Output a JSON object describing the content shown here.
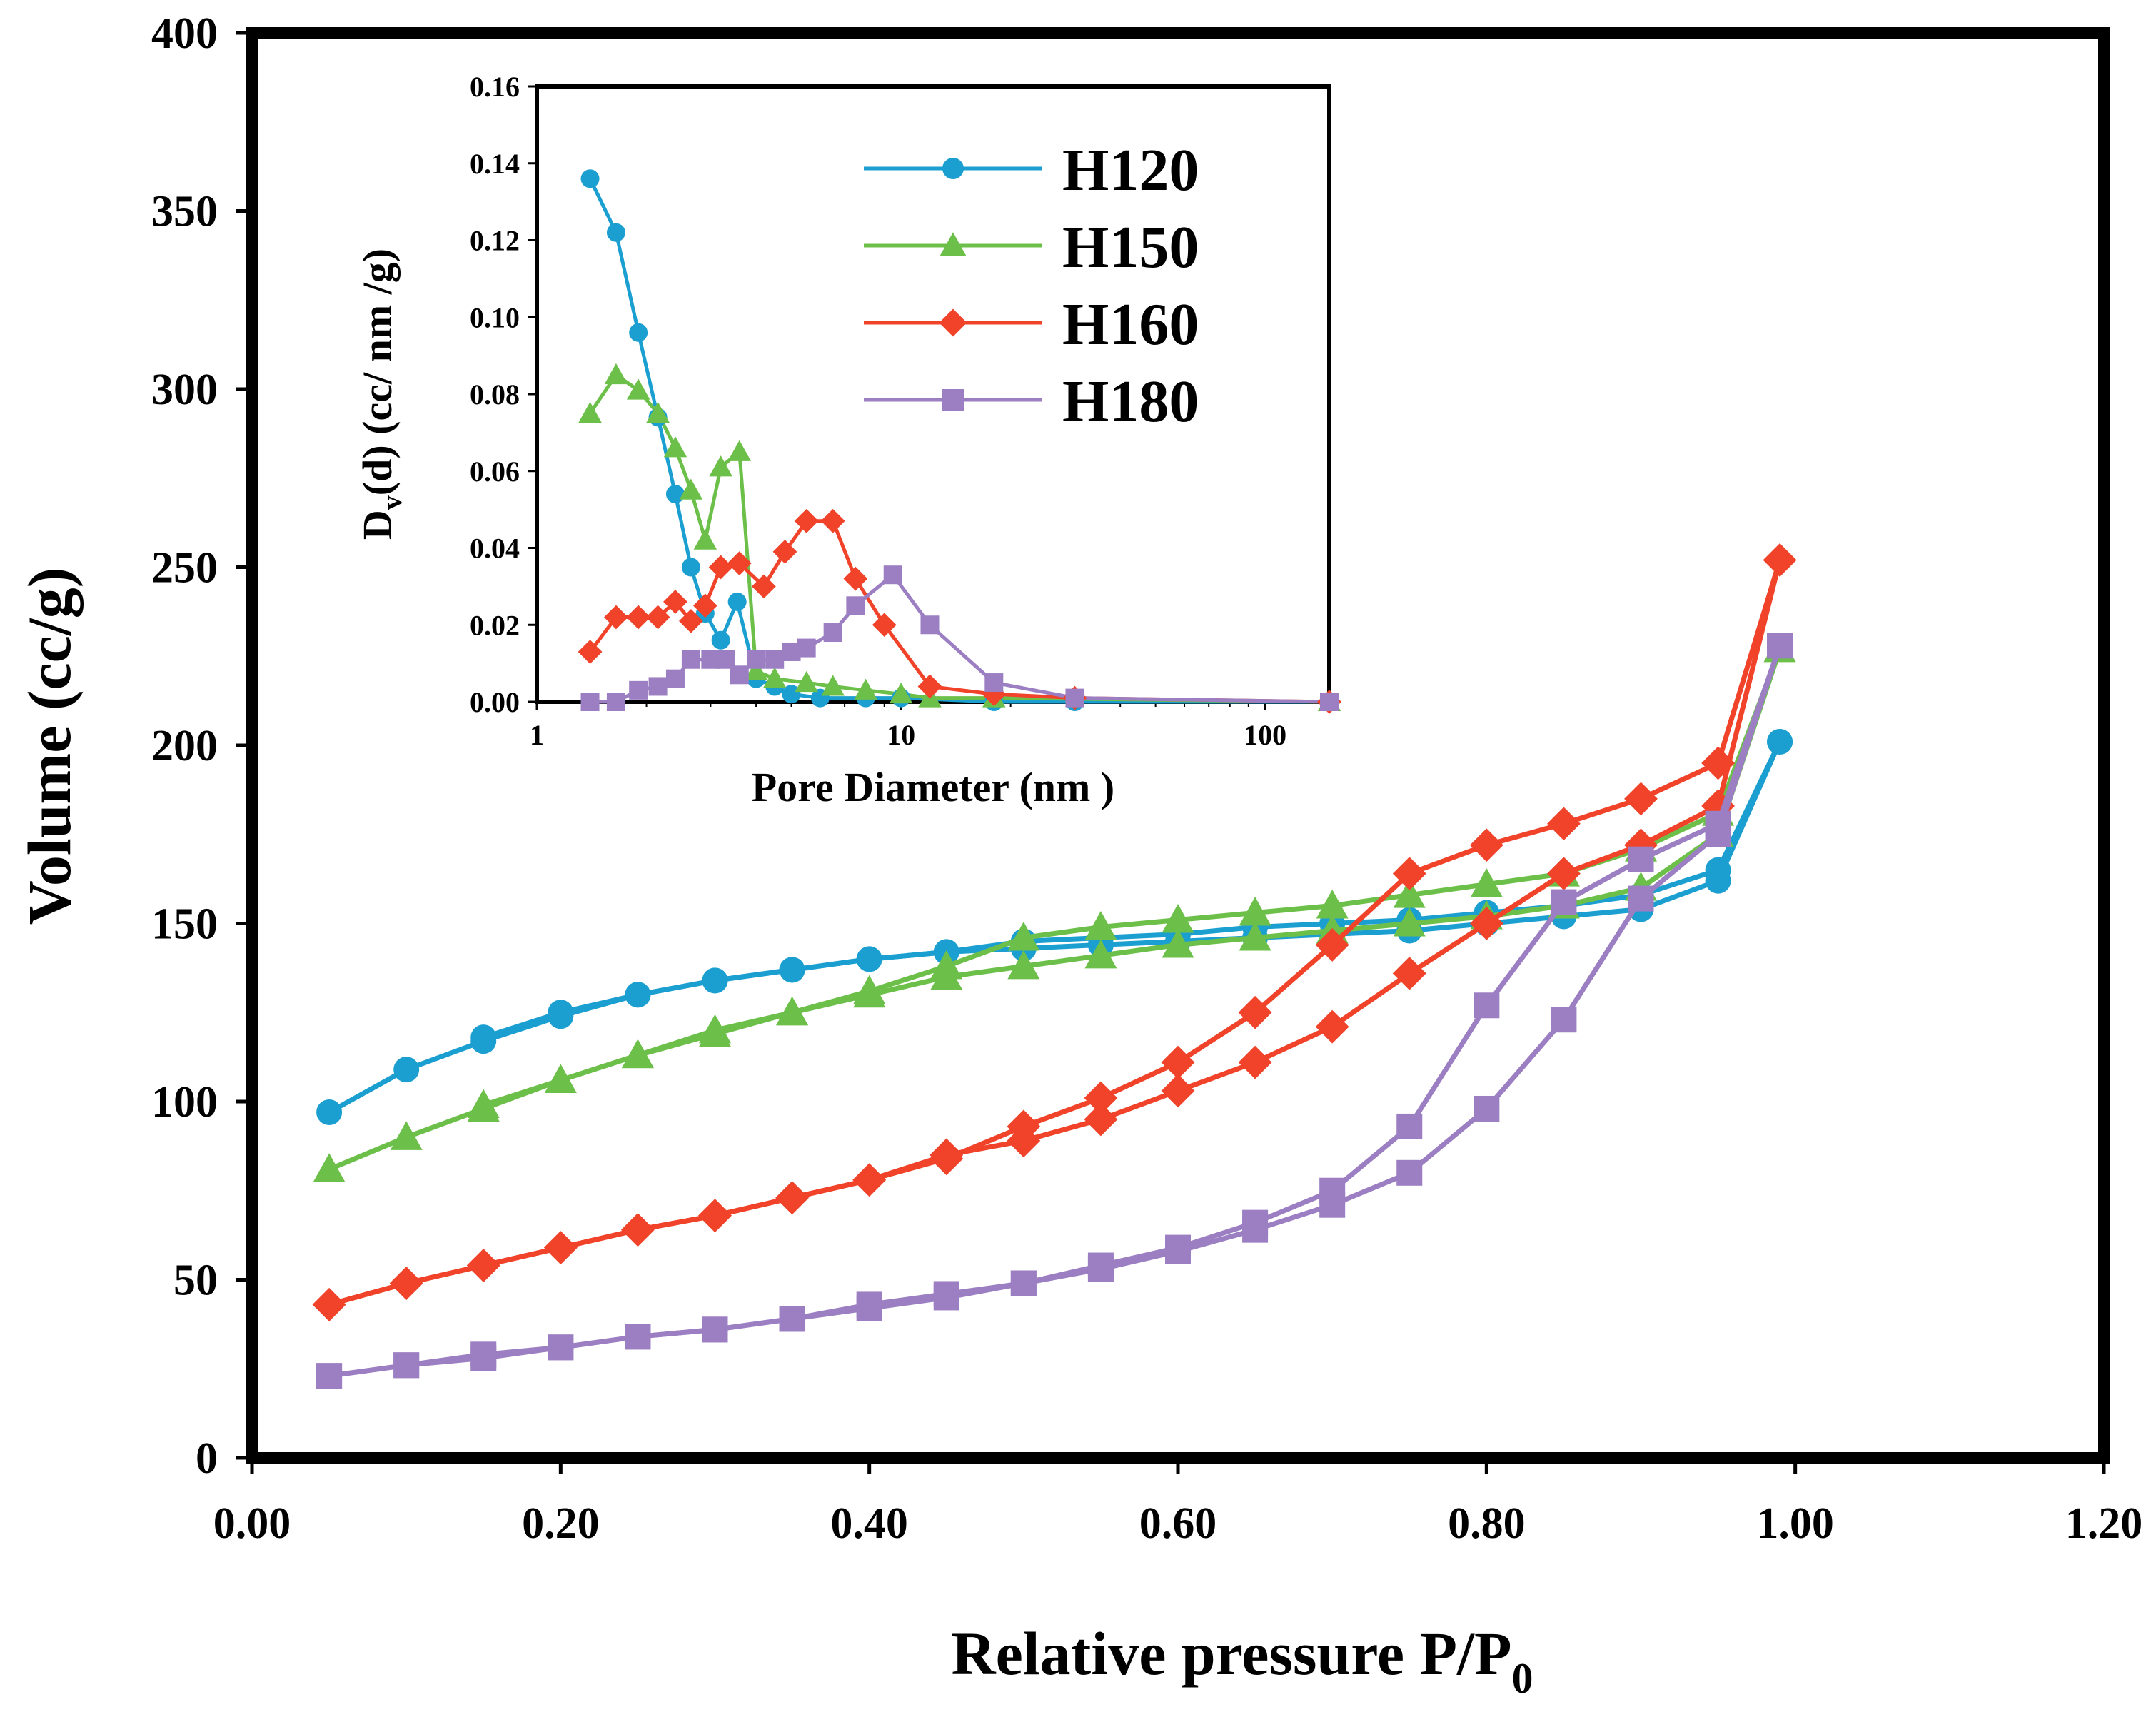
{
  "chart_data": [
    {
      "id": "isotherm",
      "type": "line",
      "xlabel_prefix": "Relative pressure P/P",
      "xlabel_sub": "0",
      "ylabel": "Volume (cc/g)",
      "xlim": [
        0,
        1.2
      ],
      "ylim": [
        0,
        400
      ],
      "xticks": [
        "0.00",
        "0.20",
        "0.40",
        "0.60",
        "0.80",
        "1.00",
        "1.20"
      ],
      "xtick_values": [
        0,
        0.2,
        0.4,
        0.6,
        0.8,
        1.0,
        1.2
      ],
      "yticks": [
        "0",
        "50",
        "100",
        "150",
        "200",
        "250",
        "300",
        "350",
        "400"
      ],
      "ytick_values": [
        0,
        50,
        100,
        150,
        200,
        250,
        300,
        350,
        400
      ],
      "grid": false,
      "series": [
        {
          "name": "H120",
          "color": "#1b9fd0",
          "marker": "circle",
          "adsorption": {
            "x": [
              0.05,
              0.1,
              0.15,
              0.2,
              0.25,
              0.3,
              0.35,
              0.4,
              0.45,
              0.5,
              0.55,
              0.6,
              0.65,
              0.7,
              0.75,
              0.8,
              0.85,
              0.9,
              0.95,
              0.99
            ],
            "y": [
              97,
              109,
              117,
              124,
              130,
              134,
              137,
              140,
              142,
              145,
              146,
              147,
              149,
              150,
              151,
              153,
              155,
              158,
              165,
              201
            ]
          },
          "desorption": {
            "x": [
              0.99,
              0.95,
              0.9,
              0.85,
              0.8,
              0.75,
              0.7,
              0.65,
              0.6,
              0.55,
              0.5,
              0.45,
              0.4,
              0.35,
              0.3,
              0.25,
              0.2,
              0.15
            ],
            "y": [
              201,
              162,
              154,
              152,
              150,
              148,
              147,
              146,
              145,
              144,
              143,
              142,
              140,
              137,
              134,
              130,
              125,
              118
            ]
          }
        },
        {
          "name": "H150",
          "color": "#6cc04a",
          "marker": "triangle",
          "adsorption": {
            "x": [
              0.05,
              0.1,
              0.15,
              0.2,
              0.25,
              0.3,
              0.35,
              0.4,
              0.45,
              0.5,
              0.55,
              0.6,
              0.65,
              0.7,
              0.75,
              0.8,
              0.85,
              0.9,
              0.95,
              0.99
            ],
            "y": [
              81,
              90,
              98,
              106,
              113,
              119,
              125,
              130,
              135,
              138,
              141,
              144,
              146,
              148,
              150,
              152,
              155,
              160,
              175,
              227
            ]
          },
          "desorption": {
            "x": [
              0.99,
              0.95,
              0.9,
              0.85,
              0.8,
              0.75,
              0.7,
              0.65,
              0.6,
              0.55,
              0.5,
              0.45,
              0.4,
              0.35,
              0.3,
              0.25,
              0.2,
              0.15
            ],
            "y": [
              227,
              181,
              171,
              164,
              161,
              158,
              155,
              153,
              151,
              149,
              146,
              138,
              131,
              125,
              120,
              113,
              106,
              99
            ]
          }
        },
        {
          "name": "H160",
          "color": "#f0432a",
          "marker": "diamond",
          "adsorption": {
            "x": [
              0.05,
              0.1,
              0.15,
              0.2,
              0.25,
              0.3,
              0.35,
              0.4,
              0.45,
              0.5,
              0.55,
              0.6,
              0.65,
              0.7,
              0.75,
              0.8,
              0.85,
              0.9,
              0.95,
              0.99
            ],
            "y": [
              43,
              49,
              54,
              59,
              64,
              68,
              73,
              78,
              85,
              89,
              95,
              103,
              111,
              121,
              136,
              150,
              164,
              172,
              183,
              252
            ]
          },
          "desorption": {
            "x": [
              0.99,
              0.95,
              0.9,
              0.85,
              0.8,
              0.75,
              0.7,
              0.65,
              0.6,
              0.55,
              0.5,
              0.45,
              0.4,
              0.35,
              0.3,
              0.25,
              0.2,
              0.15,
              0.1,
              0.05
            ],
            "y": [
              252,
              195,
              185,
              178,
              172,
              164,
              144,
              125,
              111,
              101,
              93,
              84,
              78,
              73,
              68,
              64,
              59,
              54,
              49,
              43
            ]
          }
        },
        {
          "name": "H180",
          "color": "#9b7fc2",
          "marker": "square",
          "adsorption": {
            "x": [
              0.05,
              0.1,
              0.15,
              0.2,
              0.25,
              0.3,
              0.35,
              0.4,
              0.45,
              0.5,
              0.55,
              0.6,
              0.65,
              0.7,
              0.75,
              0.8,
              0.85,
              0.9,
              0.95,
              0.99
            ],
            "y": [
              23,
              26,
              28,
              31,
              34,
              36,
              39,
              42,
              45,
              49,
              53,
              58,
              64,
              71,
              80,
              98,
              123,
              157,
              175,
              228
            ]
          },
          "desorption": {
            "x": [
              0.99,
              0.95,
              0.9,
              0.85,
              0.8,
              0.75,
              0.7,
              0.65,
              0.6,
              0.55,
              0.5,
              0.45,
              0.4,
              0.35,
              0.3,
              0.25,
              0.2,
              0.15,
              0.1,
              0.05
            ],
            "y": [
              228,
              178,
              168,
              156,
              127,
              93,
              75,
              66,
              59,
              54,
              49,
              46,
              43,
              39,
              36,
              34,
              31,
              29,
              26,
              23
            ]
          }
        }
      ]
    },
    {
      "id": "pore_size_distribution",
      "type": "line",
      "xscale": "log",
      "xlabel": "Pore Diameter (nm )",
      "ylabel_prefix": "D",
      "ylabel_sub": "v",
      "ylabel_suffix": "(d) (cc/ nm /g)",
      "xlim": [
        1,
        150
      ],
      "ylim": [
        0,
        0.16
      ],
      "xticks": [
        "1",
        "10",
        "100"
      ],
      "xtick_values": [
        1,
        10,
        100
      ],
      "yticks": [
        "0.00",
        "0.02",
        "0.04",
        "0.06",
        "0.08",
        "0.10",
        "0.12",
        "0.14",
        "0.16"
      ],
      "ytick_values": [
        0,
        0.02,
        0.04,
        0.06,
        0.08,
        0.1,
        0.12,
        0.14,
        0.16
      ],
      "legend_position": "top-right",
      "series": [
        {
          "name": "H120",
          "color": "#1b9fd0",
          "marker": "circle",
          "x": [
            1.4,
            1.65,
            1.9,
            2.15,
            2.4,
            2.65,
            2.9,
            3.2,
            3.55,
            4.0,
            4.5,
            5.0,
            6.0,
            8.0,
            10.0,
            18.0,
            30.0,
            150.0
          ],
          "y": [
            0.136,
            0.122,
            0.096,
            0.074,
            0.054,
            0.035,
            0.023,
            0.016,
            0.026,
            0.006,
            0.004,
            0.002,
            0.001,
            0.001,
            0.001,
            0.0,
            0.0,
            0.0
          ]
        },
        {
          "name": "H150",
          "color": "#6cc04a",
          "marker": "triangle",
          "x": [
            1.4,
            1.65,
            1.9,
            2.15,
            2.4,
            2.65,
            2.9,
            3.2,
            3.6,
            4.0,
            4.5,
            5.5,
            6.5,
            8.0,
            10.0,
            12.0,
            18.0,
            150.0
          ],
          "y": [
            0.075,
            0.085,
            0.081,
            0.075,
            0.066,
            0.055,
            0.042,
            0.061,
            0.065,
            0.008,
            0.006,
            0.005,
            0.004,
            0.003,
            0.002,
            0.001,
            0.001,
            0.0
          ]
        },
        {
          "name": "H160",
          "color": "#f0432a",
          "marker": "diamond",
          "x": [
            1.4,
            1.65,
            1.9,
            2.15,
            2.4,
            2.65,
            2.9,
            3.2,
            3.6,
            4.2,
            4.8,
            5.5,
            6.5,
            7.5,
            9.0,
            12.0,
            18.0,
            30.0,
            150.0
          ],
          "y": [
            0.013,
            0.022,
            0.022,
            0.022,
            0.026,
            0.021,
            0.025,
            0.035,
            0.036,
            0.03,
            0.039,
            0.047,
            0.047,
            0.032,
            0.02,
            0.004,
            0.002,
            0.001,
            0.0
          ]
        },
        {
          "name": "H180",
          "color": "#9b7fc2",
          "marker": "square",
          "x": [
            1.4,
            1.65,
            1.9,
            2.15,
            2.4,
            2.65,
            3.0,
            3.3,
            3.6,
            4.0,
            4.5,
            5.0,
            5.5,
            6.5,
            7.5,
            9.5,
            12.0,
            18.0,
            30.0,
            150.0
          ],
          "y": [
            0.0,
            0.0,
            0.003,
            0.004,
            0.006,
            0.011,
            0.011,
            0.011,
            0.007,
            0.011,
            0.011,
            0.013,
            0.014,
            0.018,
            0.025,
            0.033,
            0.02,
            0.005,
            0.001,
            0.0
          ]
        }
      ]
    }
  ]
}
